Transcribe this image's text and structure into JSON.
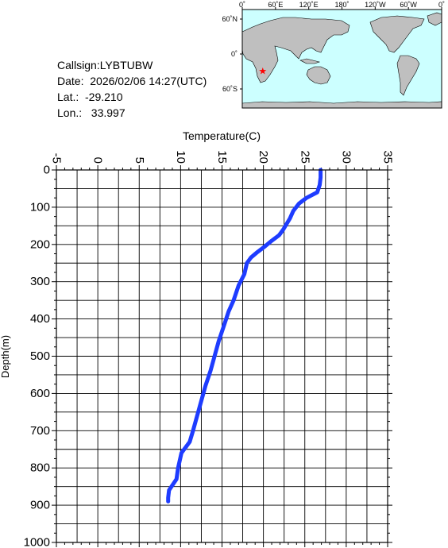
{
  "meta": {
    "callsign": "Callsign:LYBTUBW",
    "date": "Date:  2026/02/06 14:27(UTC)",
    "lat": "Lat.:  -29.210",
    "lon": "Lon.:   33.997"
  },
  "map": {
    "lon_labels": [
      "0˚",
      "60˚E",
      "120˚E",
      "180˚",
      "120˚W",
      "60˚W",
      "0˚"
    ],
    "lat_labels": [
      "60˚N",
      "0˚",
      "60˚S"
    ],
    "ocean_color": "#ccffff",
    "land_color": "#bfbfbf",
    "marker_color": "#ff0000",
    "marker": {
      "lat": -29.21,
      "lon": 33.997
    }
  },
  "chart_data": {
    "type": "line",
    "title": "",
    "xlabel": "Temperature(C)",
    "ylabel": "Depth(m)",
    "xlim": [
      -5,
      35
    ],
    "ylim": [
      0,
      1000
    ],
    "x_ticks": [
      "-5",
      "0",
      "5",
      "10",
      "15",
      "20",
      "25",
      "30",
      "35"
    ],
    "y_ticks": [
      "0",
      "100",
      "200",
      "300",
      "400",
      "500",
      "600",
      "700",
      "800",
      "900",
      "1000"
    ],
    "y_inverted": true,
    "grid": true,
    "line_color": "#1e3cff",
    "series": [
      {
        "x": [
          26.9,
          26.9,
          26.8,
          26.5,
          25.2,
          24.3,
          23.6,
          23.2,
          22.8,
          22.4,
          21.9,
          21.0,
          20.2,
          19.3,
          18.5,
          18.0,
          17.7,
          17.0,
          16.4,
          15.8,
          15.2,
          14.6,
          14.1,
          13.6,
          13.0,
          12.5,
          12.0,
          11.5,
          11.1,
          10.6,
          10.1,
          9.7,
          9.5,
          9.2,
          8.6,
          8.5,
          8.5
        ],
        "y": [
          0,
          20,
          40,
          60,
          75,
          90,
          110,
          130,
          145,
          160,
          175,
          190,
          205,
          220,
          235,
          250,
          280,
          310,
          350,
          380,
          420,
          460,
          500,
          540,
          580,
          620,
          660,
          700,
          730,
          745,
          760,
          800,
          830,
          840,
          860,
          880,
          890
        ]
      }
    ]
  }
}
